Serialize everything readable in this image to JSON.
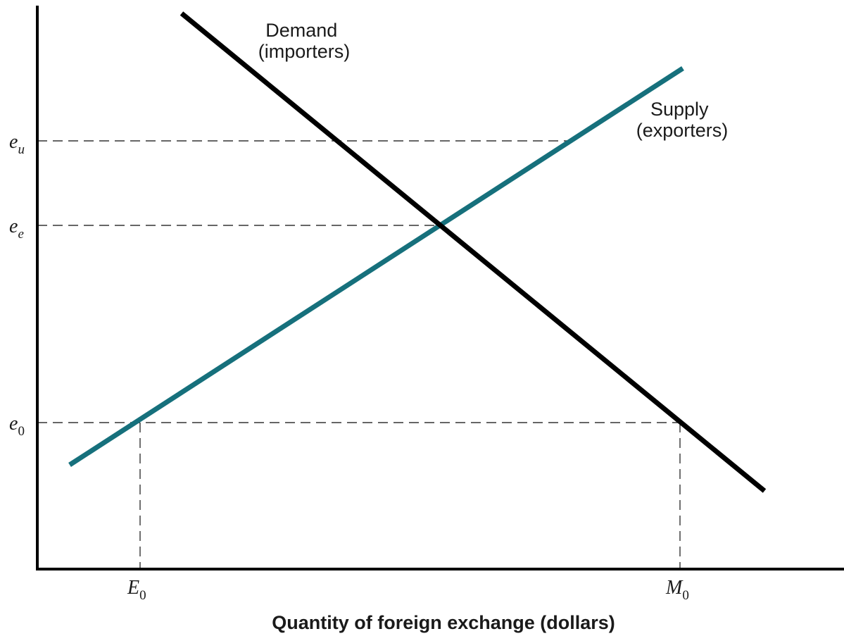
{
  "diagram": {
    "x_axis_title": "Quantity of foreign exchange (dollars)",
    "y_ticks": [
      {
        "id": "eu",
        "base": "e",
        "sub": "u"
      },
      {
        "id": "ee",
        "base": "e",
        "sub": "e"
      },
      {
        "id": "e0",
        "base": "e",
        "sub": "0"
      }
    ],
    "x_ticks": [
      {
        "id": "E0",
        "base": "E",
        "sub": "0"
      },
      {
        "id": "M0",
        "base": "M",
        "sub": "0"
      }
    ],
    "curves": {
      "demand": {
        "line1": "Demand",
        "line2": "(importers)",
        "color": "#000000"
      },
      "supply": {
        "line1": "Supply",
        "line2": "(exporters)",
        "color": "#16707c"
      }
    },
    "reference_line_style": "dashed"
  }
}
